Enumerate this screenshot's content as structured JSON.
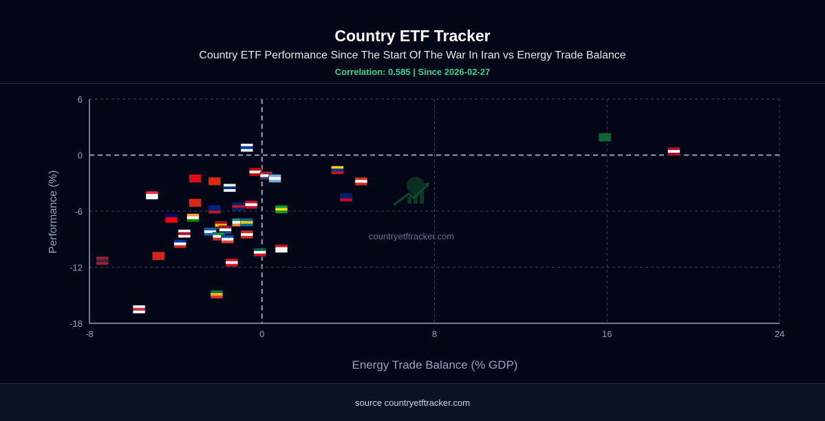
{
  "header": {
    "title": "Country ETF Tracker",
    "subtitle": "Country ETF Performance Since The Start Of The War In Iran vs Energy Trade Balance",
    "correlation": "Correlation: 0.585 | Since 2026-02-27"
  },
  "footer": {
    "source": "source countryetftracker.com"
  },
  "colors": {
    "background": "#020617",
    "grid": "#3b4557",
    "axis": "#94a3b8",
    "correlation": "#34d399",
    "watermark_logo": "#14532d"
  },
  "chart_data": {
    "type": "scatter",
    "xlabel": "Energy Trade Balance (% GDP)",
    "ylabel": "Performance (%)",
    "xlim": [
      -8,
      24
    ],
    "ylim": [
      -18,
      6
    ],
    "xticks": [
      -8,
      0,
      8,
      16,
      24
    ],
    "yticks": [
      6,
      0,
      -6,
      -12,
      -18
    ],
    "grid": true,
    "watermark": "countryetftracker.com",
    "points": [
      {
        "country": "Saudi Arabia",
        "x": 15.9,
        "y": 1.9,
        "colors": [
          "#0f6b33",
          "#0f6b33",
          "#0f6b33"
        ]
      },
      {
        "country": "Norway",
        "x": 19.1,
        "y": 0.4,
        "colors": [
          "#ba0c2f",
          "#ffffff",
          "#ba0c2f"
        ]
      },
      {
        "country": "Israel",
        "x": -0.7,
        "y": 0.8,
        "colors": [
          "#ffffff",
          "#0038b8",
          "#ffffff"
        ]
      },
      {
        "country": "Malaysia",
        "x": -0.3,
        "y": -1.8,
        "colors": [
          "#cc0000",
          "#ffffff",
          "#cc0000"
        ]
      },
      {
        "country": "United States",
        "x": 0.2,
        "y": -2.2,
        "colors": [
          "#b22234",
          "#ffffff",
          "#3c3b6e"
        ]
      },
      {
        "country": "Argentina",
        "x": 0.6,
        "y": -2.5,
        "colors": [
          "#74acdf",
          "#ffffff",
          "#74acdf"
        ]
      },
      {
        "country": "Colombia",
        "x": 3.5,
        "y": -1.6,
        "colors": [
          "#fcd116",
          "#003893",
          "#ce1126"
        ]
      },
      {
        "country": "Canada",
        "x": 4.6,
        "y": -2.8,
        "colors": [
          "#d52b1e",
          "#ffffff",
          "#d52b1e"
        ]
      },
      {
        "country": "Australia",
        "x": 3.9,
        "y": -4.5,
        "colors": [
          "#012169",
          "#012169",
          "#e4002b"
        ]
      },
      {
        "country": "Brazil",
        "x": 0.9,
        "y": -5.8,
        "colors": [
          "#009c3b",
          "#ffdf00",
          "#009c3b"
        ]
      },
      {
        "country": "Finland",
        "x": -1.5,
        "y": -3.5,
        "colors": [
          "#ffffff",
          "#003580",
          "#ffffff"
        ]
      },
      {
        "country": "China",
        "x": -2.2,
        "y": -2.8,
        "colors": [
          "#de2910",
          "#de2910",
          "#de2910"
        ]
      },
      {
        "country": "Turkey",
        "x": -3.1,
        "y": -2.5,
        "colors": [
          "#e30a17",
          "#e30a17",
          "#e30a17"
        ]
      },
      {
        "country": "Singapore",
        "x": -5.1,
        "y": -4.3,
        "colors": [
          "#ef3340",
          "#ffffff",
          "#ffffff"
        ]
      },
      {
        "country": "Hong Kong",
        "x": -3.1,
        "y": -5.1,
        "colors": [
          "#de2910",
          "#de2910",
          "#de2910"
        ]
      },
      {
        "country": "New Zealand",
        "x": -2.2,
        "y": -5.8,
        "colors": [
          "#00247d",
          "#00247d",
          "#cc142b"
        ]
      },
      {
        "country": "United Kingdom",
        "x": -1.1,
        "y": -5.5,
        "colors": [
          "#012169",
          "#c8102e",
          "#012169"
        ]
      },
      {
        "country": "Denmark",
        "x": -0.5,
        "y": -5.3,
        "colors": [
          "#c8102e",
          "#ffffff",
          "#c8102e"
        ]
      },
      {
        "country": "Taiwan",
        "x": -4.2,
        "y": -6.8,
        "colors": [
          "#000095",
          "#fe0000",
          "#fe0000"
        ]
      },
      {
        "country": "India",
        "x": -3.2,
        "y": -6.7,
        "colors": [
          "#ff9933",
          "#ffffff",
          "#138808"
        ]
      },
      {
        "country": "Spain",
        "x": -1.9,
        "y": -7.5,
        "colors": [
          "#aa151b",
          "#f1bf00",
          "#aa151b"
        ]
      },
      {
        "country": "Ireland",
        "x": -1.1,
        "y": -7.2,
        "colors": [
          "#169b62",
          "#ffffff",
          "#ff883e"
        ]
      },
      {
        "country": "Sweden",
        "x": -0.7,
        "y": -7.2,
        "colors": [
          "#006aa7",
          "#fecc00",
          "#006aa7"
        ]
      },
      {
        "country": "Netherlands",
        "x": -1.7,
        "y": -8.0,
        "colors": [
          "#ae1c28",
          "#ffffff",
          "#21468b"
        ]
      },
      {
        "country": "Greece",
        "x": -2.4,
        "y": -8.2,
        "colors": [
          "#0d5eaf",
          "#ffffff",
          "#0d5eaf"
        ]
      },
      {
        "country": "Japan",
        "x": -3.6,
        "y": -8.4,
        "colors": [
          "#ffffff",
          "#bc002d",
          "#ffffff"
        ]
      },
      {
        "country": "Italy",
        "x": -2.0,
        "y": -8.7,
        "colors": [
          "#009246",
          "#ffffff",
          "#ce2b37"
        ]
      },
      {
        "country": "France",
        "x": -1.6,
        "y": -9.0,
        "colors": [
          "#0055a4",
          "#ffffff",
          "#ef4135"
        ]
      },
      {
        "country": "Switzerland",
        "x": -0.7,
        "y": -8.5,
        "colors": [
          "#d52b1e",
          "#ffffff",
          "#d52b1e"
        ]
      },
      {
        "country": "Chile",
        "x": -3.8,
        "y": -9.5,
        "colors": [
          "#0039a6",
          "#ffffff",
          "#d52b1e"
        ]
      },
      {
        "country": "Mexico",
        "x": -0.1,
        "y": -10.4,
        "colors": [
          "#006847",
          "#ffffff",
          "#ce1126"
        ]
      },
      {
        "country": "Indonesia",
        "x": 0.9,
        "y": -10.0,
        "colors": [
          "#ce1126",
          "#ffffff",
          "#ffffff"
        ]
      },
      {
        "country": "Vietnam",
        "x": -4.8,
        "y": -10.8,
        "colors": [
          "#da251d",
          "#da251d",
          "#da251d"
        ]
      },
      {
        "country": "Thailand",
        "x": -7.4,
        "y": -11.3,
        "colors": [
          "#a51931",
          "#2d2a4a",
          "#a51931"
        ]
      },
      {
        "country": "Peru",
        "x": -1.4,
        "y": -11.5,
        "colors": [
          "#d91023",
          "#ffffff",
          "#d91023"
        ]
      },
      {
        "country": "South Africa",
        "x": -2.1,
        "y": -14.9,
        "colors": [
          "#007a4d",
          "#ffb612",
          "#de3831"
        ]
      },
      {
        "country": "South Korea",
        "x": -5.7,
        "y": -16.5,
        "colors": [
          "#ffffff",
          "#cd2e3a",
          "#ffffff"
        ]
      }
    ]
  }
}
